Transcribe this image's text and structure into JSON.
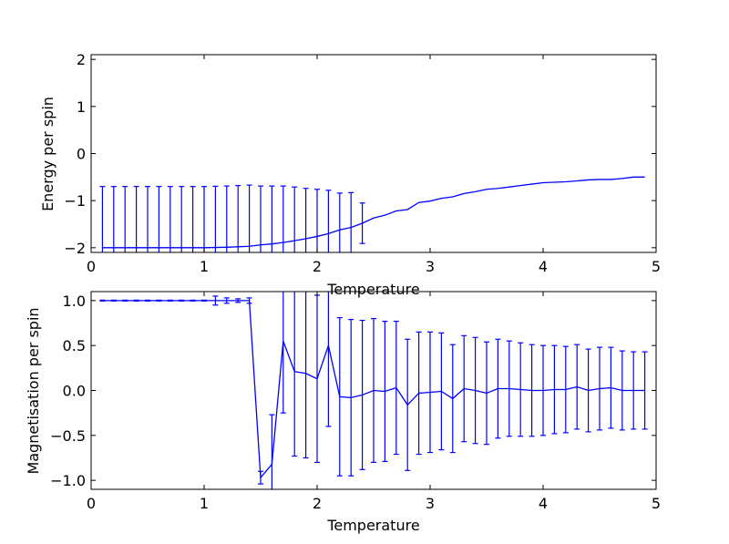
{
  "chart_data": [
    {
      "type": "line",
      "xlabel": "Temperature",
      "ylabel": "Energy per spin",
      "xlim": [
        0,
        5
      ],
      "ylim": [
        -2.1,
        2.1
      ],
      "xticks": [
        "0",
        "1",
        "2",
        "3",
        "4",
        "5"
      ],
      "yticks": [
        "−2",
        "−1",
        "0",
        "1",
        "2"
      ],
      "grid": false,
      "color": "#0000ff",
      "x": [
        0.1,
        0.2,
        0.3,
        0.4,
        0.5,
        0.6,
        0.7,
        0.8,
        0.9,
        1.0,
        1.1,
        1.2,
        1.3,
        1.4,
        1.5,
        1.6,
        1.7,
        1.8,
        1.9,
        2.0,
        2.1,
        2.2,
        2.3,
        2.4,
        2.5,
        2.6,
        2.7,
        2.8,
        2.9,
        3.0,
        3.1,
        3.2,
        3.3,
        3.4,
        3.5,
        3.6,
        3.7,
        3.8,
        3.9,
        4.0,
        4.1,
        4.2,
        4.3,
        4.4,
        4.5,
        4.6,
        4.7,
        4.8,
        4.9
      ],
      "y": [
        -2.0,
        -2.0,
        -2.0,
        -2.0,
        -2.0,
        -2.0,
        -2.0,
        -2.0,
        -2.0,
        -2.0,
        -1.995,
        -1.99,
        -1.98,
        -1.97,
        -1.94,
        -1.92,
        -1.89,
        -1.85,
        -1.81,
        -1.76,
        -1.7,
        -1.62,
        -1.57,
        -1.48,
        -1.37,
        -1.31,
        -1.22,
        -1.19,
        -1.04,
        -1.01,
        -0.95,
        -0.92,
        -0.85,
        -0.81,
        -0.76,
        -0.74,
        -0.71,
        -0.68,
        -0.65,
        -0.62,
        -0.61,
        -0.6,
        -0.58,
        -0.56,
        -0.55,
        -0.55,
        -0.53,
        -0.5,
        -0.5
      ],
      "yerr": [
        1.3,
        1.3,
        1.3,
        1.3,
        1.3,
        1.3,
        1.3,
        1.3,
        1.3,
        1.3,
        1.3,
        1.3,
        1.3,
        1.3,
        1.25,
        1.23,
        1.2,
        1.14,
        1.07,
        1.0,
        0.92,
        0.78,
        0.74,
        0.43,
        0,
        0,
        0,
        0,
        0,
        0,
        0,
        0,
        0,
        0,
        0,
        0,
        0,
        0,
        0,
        0,
        0,
        0,
        0,
        0,
        0,
        0,
        0,
        0,
        0
      ]
    },
    {
      "type": "line",
      "xlabel": "Temperature",
      "ylabel": "Magnetisation per spin",
      "xlim": [
        0,
        5
      ],
      "ylim": [
        -1.1,
        1.1
      ],
      "xticks": [
        "0",
        "1",
        "2",
        "3",
        "4",
        "5"
      ],
      "yticks": [
        "−1.0",
        "−0.5",
        "0.0",
        "0.5",
        "1.0"
      ],
      "grid": false,
      "color": "#0000ff",
      "x": [
        0.1,
        0.2,
        0.3,
        0.4,
        0.5,
        0.6,
        0.7,
        0.8,
        0.9,
        1.0,
        1.1,
        1.2,
        1.3,
        1.4,
        1.5,
        1.6,
        1.7,
        1.8,
        1.9,
        2.0,
        2.1,
        2.2,
        2.3,
        2.4,
        2.5,
        2.6,
        2.7,
        2.8,
        2.9,
        3.0,
        3.1,
        3.2,
        3.3,
        3.4,
        3.5,
        3.6,
        3.7,
        3.8,
        3.9,
        4.0,
        4.1,
        4.2,
        4.3,
        4.4,
        4.5,
        4.6,
        4.7,
        4.8,
        4.9
      ],
      "y": [
        1.0,
        1.0,
        1.0,
        1.0,
        1.0,
        1.0,
        1.0,
        1.0,
        1.0,
        1.0,
        1.0,
        1.0,
        1.0,
        1.0,
        -0.97,
        -0.82,
        0.55,
        0.21,
        0.19,
        0.13,
        0.5,
        -0.07,
        -0.08,
        -0.05,
        0.0,
        -0.01,
        0.03,
        -0.16,
        -0.03,
        -0.02,
        -0.01,
        -0.09,
        0.02,
        0.0,
        -0.03,
        0.02,
        0.02,
        0.01,
        0.0,
        0.0,
        0.01,
        0.01,
        0.04,
        0.0,
        0.02,
        0.03,
        0.0,
        0.0,
        0.0
      ],
      "yerr": [
        0.005,
        0.005,
        0.005,
        0.005,
        0.005,
        0.005,
        0.005,
        0.005,
        0.005,
        0.005,
        0.05,
        0.03,
        0.02,
        0.03,
        0.07,
        0.55,
        0.8,
        0.94,
        0.94,
        0.93,
        0.9,
        0.88,
        0.87,
        0.83,
        0.8,
        0.78,
        0.74,
        0.73,
        0.68,
        0.67,
        0.65,
        0.6,
        0.59,
        0.59,
        0.57,
        0.55,
        0.53,
        0.52,
        0.51,
        0.5,
        0.49,
        0.48,
        0.47,
        0.46,
        0.46,
        0.45,
        0.44,
        0.43,
        0.43
      ]
    }
  ]
}
